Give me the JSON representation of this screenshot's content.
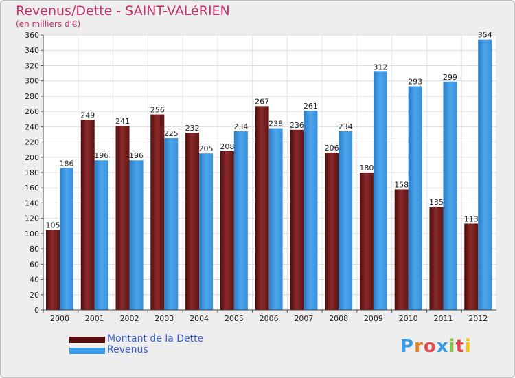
{
  "title": "Revenus/Dette - SAINT-VALéRIEN",
  "subtitle": "(en milliers d'€)",
  "logo_text": "Proxiti",
  "colors": {
    "debt": "#7a1f1f",
    "revenue": "#3a9ae6",
    "title": "#c4306a",
    "legend_text": "#3a5fd0"
  },
  "legend": {
    "debt_label": "Montant de la Dette",
    "revenue_label": "Revenus"
  },
  "chart_data": {
    "type": "bar",
    "title": "Revenus/Dette - SAINT-VALéRIEN",
    "ylabel": "(en milliers d'€)",
    "xlabel": "",
    "ylim": [
      0,
      360
    ],
    "ytick_step": 20,
    "grid": true,
    "legend_position": "bottom-left",
    "categories": [
      "2000",
      "2001",
      "2002",
      "2003",
      "2004",
      "2005",
      "2006",
      "2007",
      "2008",
      "2009",
      "2010",
      "2011",
      "2012"
    ],
    "series": [
      {
        "name": "Montant de la Dette",
        "values": [
          105,
          249,
          241,
          256,
          232,
          208,
          267,
          236,
          206,
          180,
          158,
          135,
          113
        ]
      },
      {
        "name": "Revenus",
        "values": [
          186,
          196,
          196,
          225,
          205,
          234,
          238,
          261,
          234,
          312,
          293,
          299,
          354
        ]
      }
    ]
  }
}
